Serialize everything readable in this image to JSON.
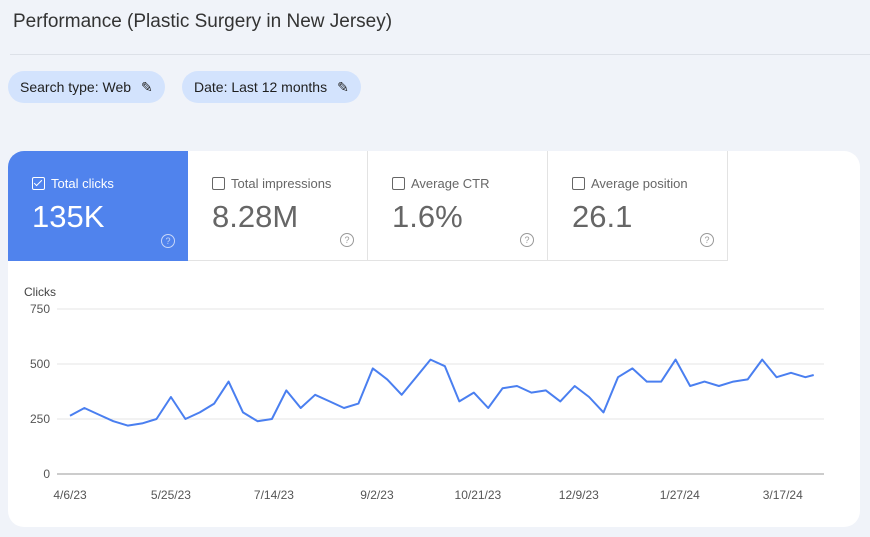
{
  "header": {
    "title": "Performance (Plastic Surgery in New Jersey)"
  },
  "filters": [
    {
      "label": "Search type: Web",
      "icon": "pencil-icon"
    },
    {
      "label": "Date: Last 12 months",
      "icon": "pencil-icon"
    }
  ],
  "metrics": [
    {
      "label": "Total clicks",
      "value": "135K",
      "checked": true
    },
    {
      "label": "Total impressions",
      "value": "8.28M",
      "checked": false
    },
    {
      "label": "Average CTR",
      "value": "1.6%",
      "checked": false
    },
    {
      "label": "Average position",
      "value": "26.1",
      "checked": false
    }
  ],
  "colors": {
    "accent": "#5083ed",
    "line": "#4a7ff0",
    "chip": "#d3e3fd"
  },
  "chart_data": {
    "type": "line",
    "ylabel": "Clicks",
    "ylim": [
      0,
      750
    ],
    "yticks": [
      0,
      250,
      500,
      750
    ],
    "grid": true,
    "xticks": [
      "4/6/23",
      "5/25/23",
      "7/14/23",
      "9/2/23",
      "10/21/23",
      "12/9/23",
      "1/27/24",
      "3/17/24"
    ],
    "x": [
      "4/6/23",
      "4/13/23",
      "4/20/23",
      "4/27/23",
      "5/4/23",
      "5/11/23",
      "5/18/23",
      "5/25/23",
      "6/1/23",
      "6/8/23",
      "6/15/23",
      "6/22/23",
      "6/29/23",
      "7/6/23",
      "7/13/23",
      "7/20/23",
      "7/27/23",
      "8/3/23",
      "8/10/23",
      "8/17/23",
      "8/24/23",
      "8/31/23",
      "9/7/23",
      "9/14/23",
      "9/21/23",
      "9/28/23",
      "10/5/23",
      "10/12/23",
      "10/19/23",
      "10/26/23",
      "11/2/23",
      "11/9/23",
      "11/16/23",
      "11/23/23",
      "11/30/23",
      "12/7/23",
      "12/14/23",
      "12/21/23",
      "12/28/23",
      "1/4/24",
      "1/11/24",
      "1/18/24",
      "1/25/24",
      "2/1/24",
      "2/8/24",
      "2/15/24",
      "2/22/24",
      "2/29/24",
      "3/7/24",
      "3/14/24",
      "3/21/24",
      "3/28/24",
      "4/1/24"
    ],
    "values": [
      265,
      300,
      270,
      240,
      220,
      230,
      250,
      350,
      250,
      280,
      320,
      420,
      280,
      240,
      250,
      380,
      300,
      360,
      330,
      300,
      320,
      480,
      430,
      360,
      440,
      520,
      490,
      330,
      370,
      300,
      390,
      400,
      370,
      380,
      330,
      400,
      350,
      280,
      440,
      480,
      420,
      420,
      520,
      400,
      420,
      400,
      420,
      430,
      520,
      440,
      460,
      440,
      450
    ]
  }
}
